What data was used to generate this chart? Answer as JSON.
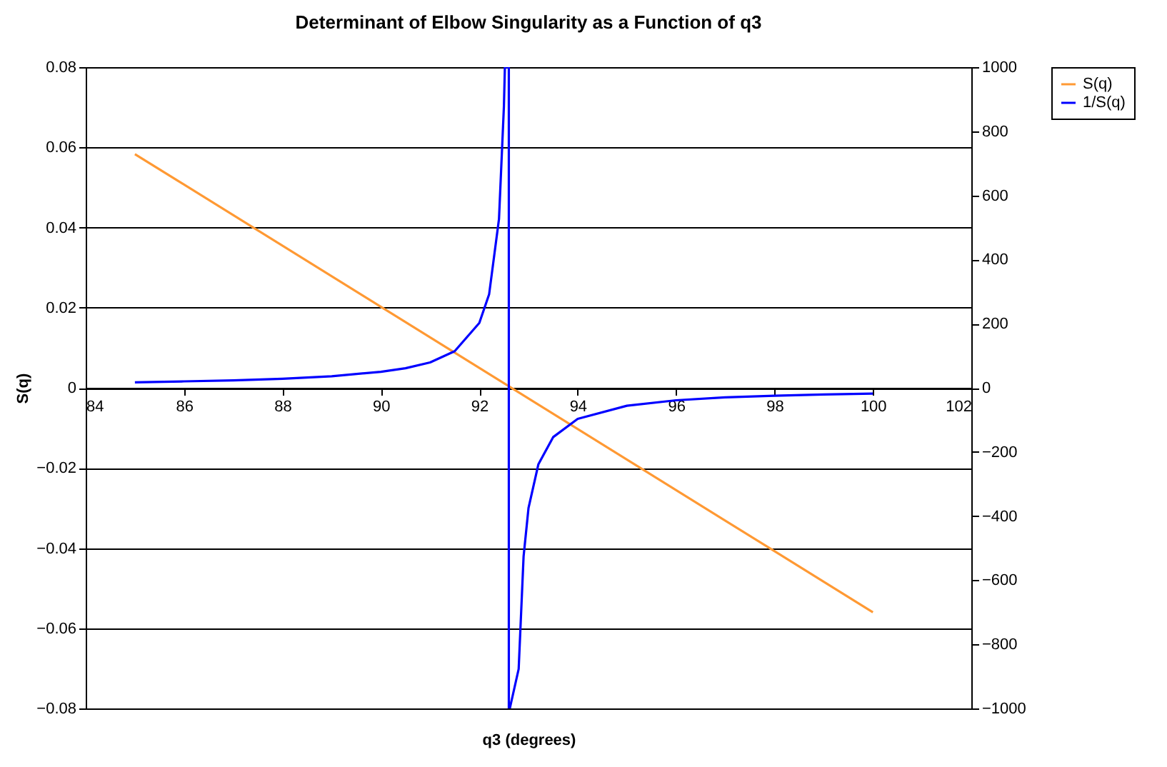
{
  "chart_data": {
    "type": "line",
    "title": "Determinant of Elbow Singularity as a Function of q3",
    "xlabel": "q3 (degrees)",
    "ylabel": "S(q)",
    "xlim": [
      84,
      102
    ],
    "xticks": [
      84,
      86,
      88,
      90,
      92,
      94,
      96,
      98,
      100,
      102
    ],
    "ylim": [
      -0.08,
      0.08
    ],
    "yticks": [
      -0.08,
      -0.06,
      -0.04,
      -0.02,
      0,
      0.02,
      0.04,
      0.06,
      0.08
    ],
    "y2lim": [
      -1000,
      1000
    ],
    "y2ticks": [
      -1000,
      -800,
      -600,
      -400,
      -200,
      0,
      200,
      400,
      600,
      800,
      1000
    ],
    "grid": "y",
    "legend": "right",
    "series": [
      {
        "name": "S(q)",
        "color": "#ff9933",
        "x": [
          85,
          100
        ],
        "values": [
          0.0583,
          -0.056
        ]
      },
      {
        "name": "1/S(q)",
        "color": "#0000ff",
        "axis": "y2",
        "x": [
          85,
          86,
          87,
          88,
          89,
          90,
          90.5,
          91,
          91.5,
          92,
          92.2,
          92.4,
          92.5,
          92.52,
          92.6,
          92.6,
          92.62,
          92.8,
          92.9,
          93,
          93.2,
          93.5,
          94,
          95,
          96,
          97,
          98,
          99,
          100
        ],
        "values": [
          17,
          20,
          23,
          28,
          36,
          50,
          61,
          79,
          114,
          202,
          292,
          526,
          877,
          1000,
          1000,
          -1000,
          -1000,
          -877,
          -526,
          -375,
          -239,
          -154,
          -97,
          -56,
          -39,
          -30,
          -25,
          -21,
          -18
        ]
      }
    ]
  }
}
